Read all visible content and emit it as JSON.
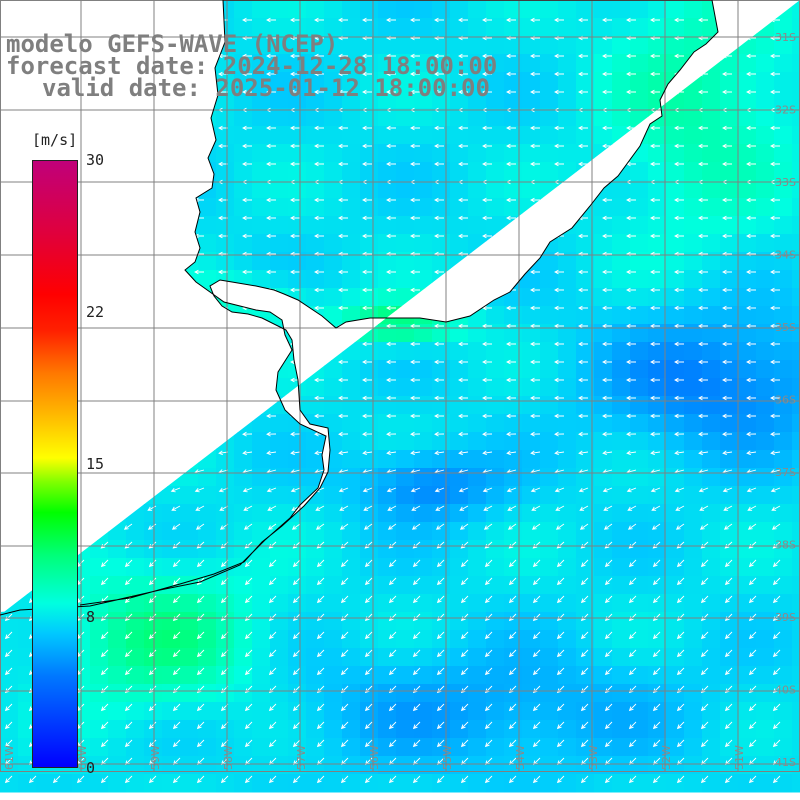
{
  "title": {
    "line1": "modelo GEFS-WAVE (NCEP)",
    "line2": "forecast date: 2024-12-28 18:00:00",
    "line3": "valid date: 2025-01-12 18:00:00"
  },
  "colorbar": {
    "units": "[m/s]",
    "min": 0,
    "max": 30,
    "labels": [
      "30",
      "22",
      "15",
      "8",
      "0"
    ]
  },
  "map": {
    "variable": "10 m wind speed and direction",
    "dominant_direction": "from the east / northeast",
    "lat_labels": [
      "31S",
      "32S",
      "33S",
      "34S",
      "35S",
      "36S",
      "37S",
      "38S",
      "39S",
      "40S",
      "41S"
    ],
    "lon_labels": [
      "61W",
      "60W",
      "59W",
      "58W",
      "57W",
      "56W",
      "55W",
      "54W",
      "53W",
      "52W",
      "51W"
    ],
    "colors": {
      "land": "#ffffff",
      "coast": "#000000",
      "grid": "#808080",
      "arrows": "#ffffff",
      "title": "#7f7f7f"
    }
  }
}
